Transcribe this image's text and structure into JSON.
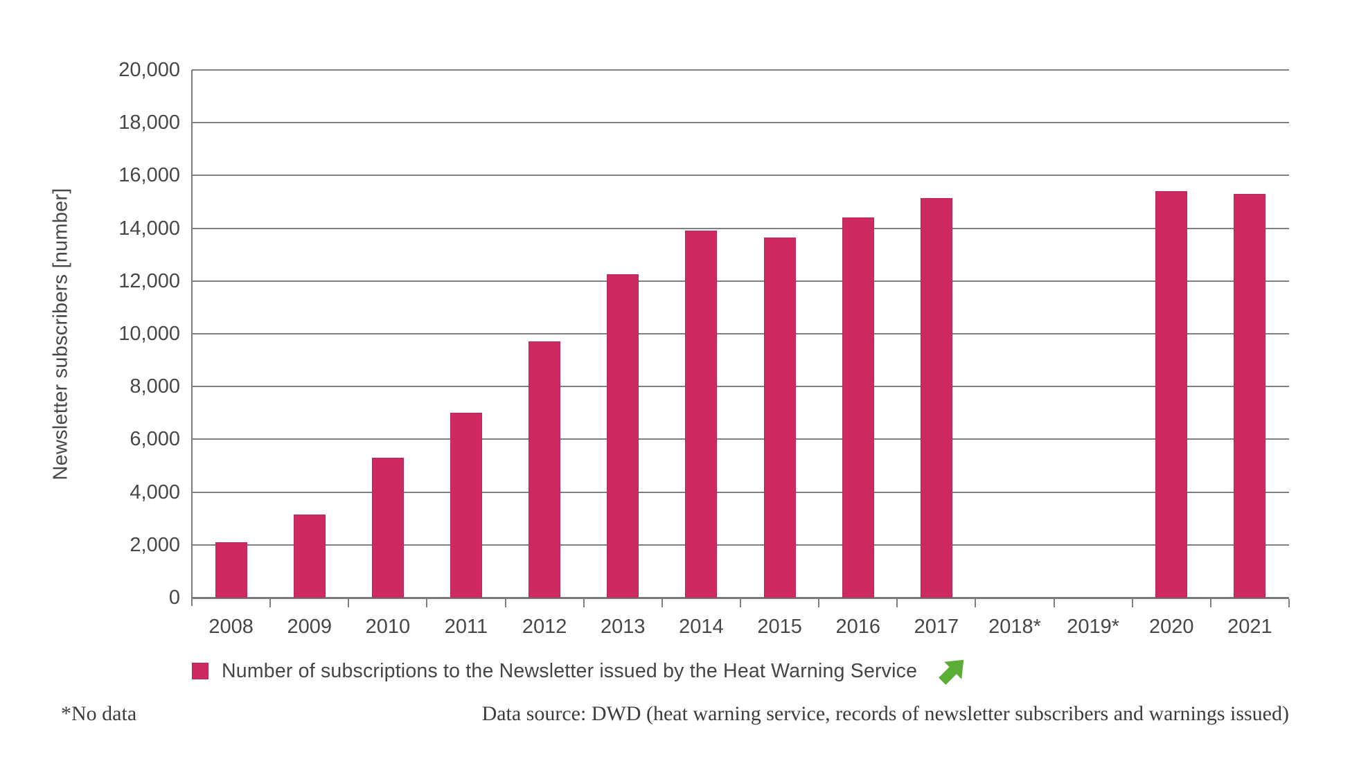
{
  "chart_data": {
    "type": "bar",
    "title": "",
    "xlabel": "",
    "ylabel": "Newsletter subscribers [number]",
    "categories": [
      "2008",
      "2009",
      "2010",
      "2011",
      "2012",
      "2013",
      "2014",
      "2015",
      "2016",
      "2017",
      "2018*",
      "2019*",
      "2020",
      "2021"
    ],
    "values": [
      2100,
      3150,
      5300,
      7000,
      9700,
      12250,
      13900,
      13650,
      14400,
      15150,
      null,
      null,
      15400,
      15300
    ],
    "series_name": "Number of subscriptions to the Newsletter issued by the Heat Warning Service",
    "ylim": [
      0,
      20000
    ],
    "ytick_interval": 2000,
    "ytick_labels": [
      "0",
      "2,000",
      "4,000",
      "6,000",
      "8,000",
      "10,000",
      "12,000",
      "14,000",
      "16,000",
      "18,000",
      "20,000"
    ],
    "grid": true,
    "legend_position": "bottom",
    "bar_color": "#CE2960",
    "no_data_categories": [
      "2018*",
      "2019*"
    ]
  },
  "legend": {
    "label": "Number of subscriptions to the Newsletter issued by the Heat Warning Service",
    "swatch_color": "#CE2960",
    "trend_icon": "arrow-up-right-icon",
    "trend_color": "#5AAD35"
  },
  "footnotes": {
    "no_data": "*No data",
    "source": "Data source: DWD (heat warning service, records of newsletter subscribers and warnings issued)"
  },
  "colors": {
    "axis_text": "#474747",
    "grid_line": "#7f7f7f",
    "footer_text": "#3c3c3c"
  }
}
